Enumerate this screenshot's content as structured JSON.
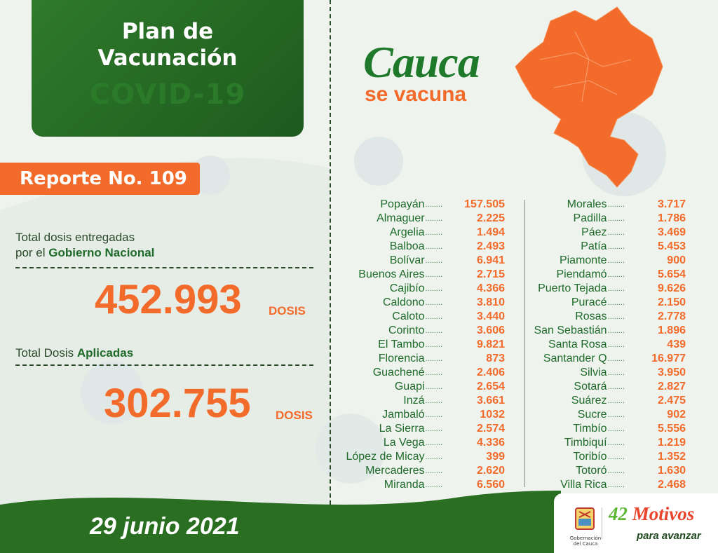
{
  "header": {
    "line1": "Plan de",
    "line2": "Vacunación",
    "line3": "COVID-19"
  },
  "report": {
    "label": "Reporte No. 109"
  },
  "delivered": {
    "label_pre": "Total dosis entregadas",
    "label_mid": "por el ",
    "label_bold": "Gobierno Nacional",
    "value": "452.993",
    "unit": "DOSIS"
  },
  "applied": {
    "label_pre": "Total Dosis ",
    "label_bold": "Aplicadas",
    "value": "302.755",
    "unit": "DOSIS"
  },
  "brand": {
    "title": "Cauca",
    "subtitle": "se vacuna"
  },
  "date": "29 junio 2021",
  "logos": {
    "gov": "Gobernación del Cauca",
    "motto_main": "42 Motivos",
    "motto_sub": "para avanzar"
  },
  "colors": {
    "green": "#1e6b2a",
    "orange": "#f36b2b"
  },
  "municipalities_left": [
    {
      "name": "Popayán",
      "value": "157.505"
    },
    {
      "name": "Almaguer",
      "value": "2.225"
    },
    {
      "name": "Argelia",
      "value": "1.494"
    },
    {
      "name": "Balboa",
      "value": "2.493"
    },
    {
      "name": "Bolívar",
      "value": "6.941"
    },
    {
      "name": "Buenos Aires",
      "value": "2.715"
    },
    {
      "name": "Cajibío",
      "value": "4.366"
    },
    {
      "name": "Caldono",
      "value": "3.810"
    },
    {
      "name": "Caloto",
      "value": "3.440"
    },
    {
      "name": "Corinto",
      "value": "3.606"
    },
    {
      "name": "El Tambo",
      "value": "9.821"
    },
    {
      "name": "Florencia",
      "value": "873"
    },
    {
      "name": "Guachené",
      "value": "2.406"
    },
    {
      "name": "Guapi",
      "value": "2.654"
    },
    {
      "name": "Inzá",
      "value": "3.661"
    },
    {
      "name": "Jambaló",
      "value": "1032"
    },
    {
      "name": "La Sierra",
      "value": "2.574"
    },
    {
      "name": "La Vega",
      "value": "4.336"
    },
    {
      "name": "López de Micay",
      "value": "399"
    },
    {
      "name": "Mercaderes",
      "value": "2.620"
    },
    {
      "name": "Miranda",
      "value": "6.560"
    }
  ],
  "municipalities_right": [
    {
      "name": "Morales",
      "value": "3.717"
    },
    {
      "name": "Padilla",
      "value": "1.786"
    },
    {
      "name": "Páez",
      "value": "3.469"
    },
    {
      "name": "Patía",
      "value": "5.453"
    },
    {
      "name": "Piamonte",
      "value": "900"
    },
    {
      "name": "Piendamó",
      "value": "5.654"
    },
    {
      "name": "Puerto Tejada",
      "value": "9.626"
    },
    {
      "name": "Puracé",
      "value": "2.150"
    },
    {
      "name": "Rosas",
      "value": "2.778"
    },
    {
      "name": "San Sebastián",
      "value": "1.896"
    },
    {
      "name": "Santa Rosa",
      "value": "439"
    },
    {
      "name": "Santander Q",
      "value": "16.977"
    },
    {
      "name": "Silvia",
      "value": "3.950"
    },
    {
      "name": "Sotará",
      "value": "2.827"
    },
    {
      "name": "Suárez",
      "value": "2.475"
    },
    {
      "name": "Sucre",
      "value": "902"
    },
    {
      "name": "Timbío",
      "value": "5.556"
    },
    {
      "name": "Timbiquí",
      "value": "1.219"
    },
    {
      "name": "Toribío",
      "value": "1.352"
    },
    {
      "name": "Totoró",
      "value": "1.630"
    },
    {
      "name": "Villa Rica",
      "value": "2.468"
    }
  ]
}
